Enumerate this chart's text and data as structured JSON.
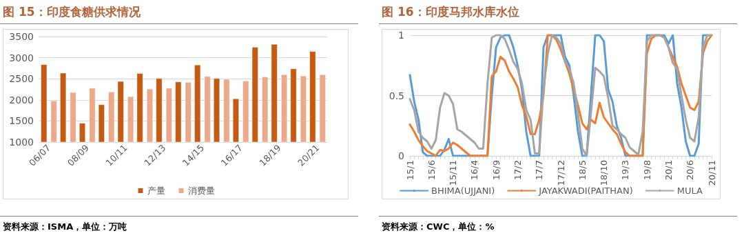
{
  "chart_data": [
    {
      "type": "bar",
      "title": "图 15：印度食糖供求情况",
      "annotations": [
        "资料来源：ISMA，单位：万吨"
      ],
      "categories": [
        "06/07",
        null,
        "08/09",
        null,
        "10/11",
        null,
        "12/13",
        null,
        "14/15",
        null,
        "16/17",
        null,
        "18/19",
        null,
        "20/21"
      ],
      "series": [
        {
          "name": "产量",
          "color": "#c55a11",
          "values": [
            2840,
            2640,
            1450,
            1890,
            2440,
            2630,
            2510,
            2430,
            2830,
            2510,
            2030,
            3250,
            3320,
            2740,
            3150
          ]
        },
        {
          "name": "消费量",
          "color": "#eba98a",
          "values": [
            1980,
            2180,
            2280,
            2190,
            2080,
            2260,
            2280,
            2420,
            2560,
            2490,
            2450,
            2550,
            2600,
            2570,
            2600
          ]
        }
      ],
      "ylim": [
        1000,
        3500
      ],
      "yticks": [
        1000,
        1500,
        2000,
        2500,
        3000,
        3500
      ],
      "grid": "y",
      "legend": "bottom"
    },
    {
      "type": "line",
      "title": "图 16：印度马邦水库水位",
      "annotations": [
        "资料来源：CWC，单位：%"
      ],
      "categories": [
        "15/1",
        null,
        null,
        null,
        null,
        "15/6",
        null,
        null,
        null,
        null,
        "15/11",
        null,
        null,
        null,
        null,
        "16/4",
        null,
        null,
        null,
        null,
        "16/9",
        null,
        null,
        null,
        null,
        "17/2",
        null,
        null,
        null,
        null,
        "17/7",
        null,
        null,
        null,
        null,
        "17/12",
        null,
        null,
        null,
        null,
        "18/5",
        null,
        null,
        null,
        null,
        "18/10",
        null,
        null,
        null,
        null,
        "19/3",
        null,
        null,
        null,
        null,
        "19/8",
        null,
        null,
        null,
        null,
        "20/1",
        null,
        null,
        null,
        null,
        "20/6",
        null,
        null,
        null,
        null,
        "20/11"
      ],
      "series": [
        {
          "name": "BHIMA(UJJANI)",
          "color": "#5b9bd5",
          "values": [
            0.67,
            0.45,
            0.3,
            0.03,
            0,
            0,
            0,
            0,
            0.05,
            0.14,
            0,
            0,
            0,
            0,
            0,
            0,
            0,
            0,
            0,
            0.5,
            0.9,
            0.98,
            1,
            1,
            0.9,
            0.75,
            0.55,
            0.2,
            0,
            0,
            0,
            0.9,
            1,
            1,
            1,
            1,
            0.82,
            0.75,
            0.5,
            0.2,
            0,
            0,
            0.5,
            1,
            1,
            0.95,
            0.55,
            0.45,
            0.25,
            0.15,
            0,
            0,
            0,
            0,
            0,
            1,
            1,
            1,
            1,
            1,
            0.93,
            1,
            0.6,
            0.4,
            0.12,
            0,
            0,
            0.1,
            1,
            1,
            1
          ]
        },
        {
          "name": "JAYAKWADI(PAITHAN)",
          "color": "#ed7d31",
          "values": [
            0.26,
            0.2,
            0.13,
            0.08,
            0.04,
            0.02,
            0,
            0.05,
            0.04,
            0.06,
            0.11,
            0.09,
            0.06,
            0.03,
            0,
            0,
            0,
            0,
            0,
            0.66,
            0.7,
            0.82,
            0.79,
            0.7,
            0.64,
            0.57,
            0.42,
            0.33,
            0.18,
            0.18,
            0.3,
            0.5,
            1,
            1,
            0.96,
            0.88,
            0.78,
            0.68,
            0.55,
            0.42,
            0.27,
            0.22,
            0.3,
            0.27,
            0.44,
            0.32,
            0.27,
            0.22,
            0.18,
            0.1,
            0.03,
            0,
            0,
            0,
            0,
            0.85,
            0.97,
            1,
            1,
            0.98,
            0.9,
            0.82,
            0.74,
            0.6,
            0.5,
            0.4,
            0.38,
            0.45,
            0.85,
            0.95,
            1
          ]
        },
        {
          "name": "MULA",
          "color": "#a5a5a5",
          "values": [
            0.47,
            0.38,
            0.2,
            0.15,
            0.12,
            0.06,
            0.13,
            0.4,
            0.52,
            0.5,
            0.43,
            0.22,
            0.2,
            0.17,
            0.14,
            0.11,
            0.06,
            0.06,
            0.6,
            0.98,
            1,
            1,
            0.97,
            0.88,
            0.78,
            0.72,
            0.6,
            0.38,
            0.3,
            0.02,
            0.02,
            0.55,
            0.85,
            1,
            0.98,
            0.93,
            0.78,
            0.72,
            0.6,
            0.35,
            0.06,
            0,
            0.35,
            0.73,
            0.7,
            0.66,
            0.48,
            0.25,
            0.22,
            0.18,
            0.15,
            0.07,
            0.04,
            0.01,
            0.2,
            0.95,
            1,
            1,
            1,
            0.98,
            0.9,
            0.77,
            0.72,
            0.5,
            0.3,
            0.15,
            0.12,
            0.32,
            0.9,
            1,
            1
          ]
        }
      ],
      "ylim": [
        0,
        1
      ],
      "yticks": [
        0,
        0.5,
        1
      ],
      "grid": "y",
      "legend": "bottom",
      "marker": "none",
      "line_style": "solid"
    }
  ]
}
